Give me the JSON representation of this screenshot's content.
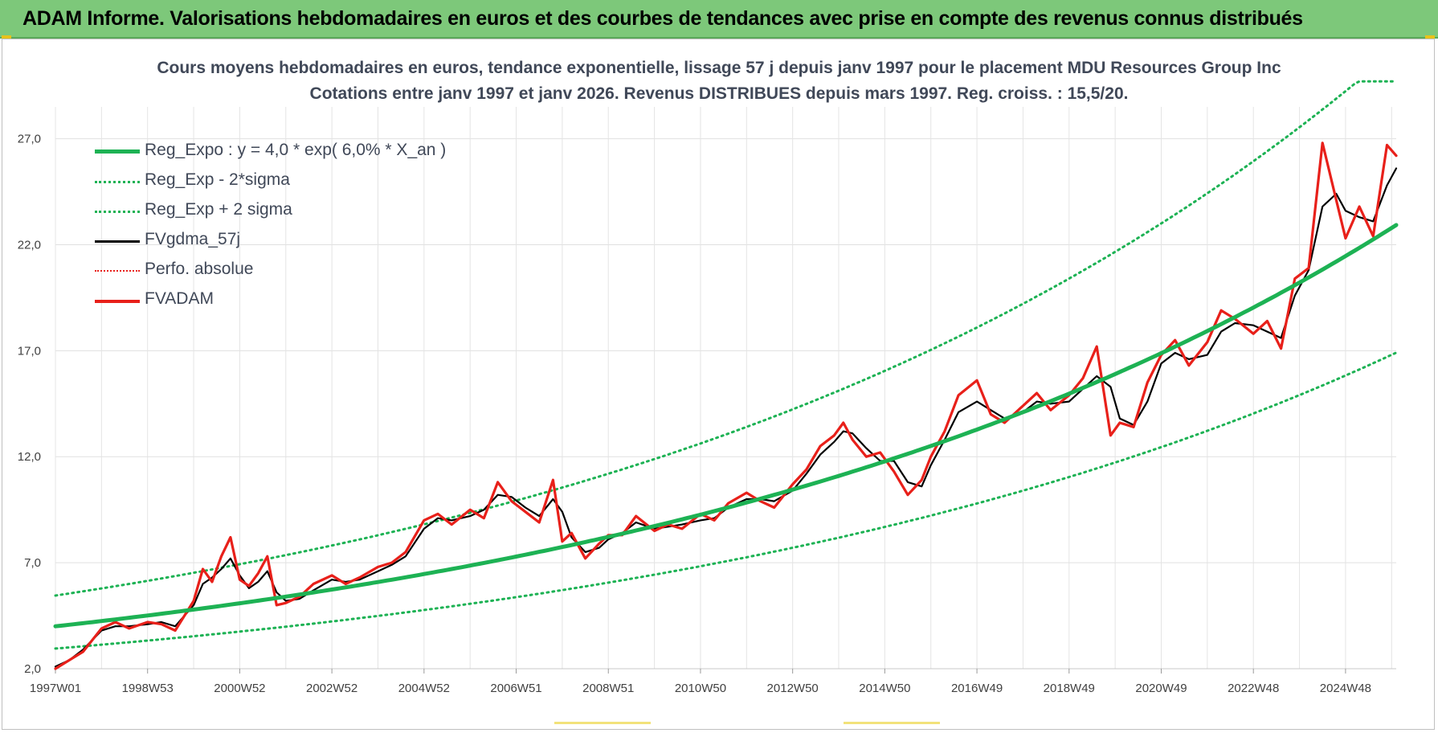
{
  "header": {
    "title": "ADAM Informe. Valorisations hebdomadaires en euros et des courbes de tendances avec prise en compte des revenus connus distribués"
  },
  "chart_data": {
    "type": "line",
    "title": "Cours moyens hebdomadaires en euros, tendance exponentielle, lissage 57 j depuis janv 1997  pour le placement MDU Resources Group Inc",
    "subtitle": "Cotations entre janv 1997 et janv 2026. Revenus DISTRIBUES depuis mars 1997. Reg. croiss. : 15,5/20.",
    "xlabel": "",
    "ylabel": "",
    "x_range": [
      1997.0,
      2026.1
    ],
    "ylim": [
      2.0,
      28.5
    ],
    "yticks": [
      2.0,
      7.0,
      12.0,
      17.0,
      22.0,
      27.0
    ],
    "ytick_labels": [
      "2,0",
      "7,0",
      "12,0",
      "17,0",
      "22,0",
      "27,0"
    ],
    "xticks": [
      1997.0,
      1999.0,
      2001.0,
      2003.0,
      2005.0,
      2007.0,
      2009.0,
      2011.0,
      2013.0,
      2015.0,
      2017.0,
      2019.0,
      2021.0,
      2023.0,
      2025.0
    ],
    "xtick_labels": [
      "1997W01",
      "1998W53",
      "2000W52",
      "2002W52",
      "2004W52",
      "2006W51",
      "2008W51",
      "2010W50",
      "2012W50",
      "2014W50",
      "2016W49",
      "2018W49",
      "2020W49",
      "2022W48",
      "2024W48"
    ],
    "grid": true,
    "legend_position": "top-left",
    "series": [
      {
        "name": "Reg_Expo : y = 4,0 * exp( 6,0% *  X_an )",
        "color": "#1db254",
        "style": "solid-thick",
        "formula": {
          "a": 4.0,
          "b": 0.06,
          "x0": 1997.0
        }
      },
      {
        "name": "Reg_Exp - 2*sigma",
        "color": "#1db254",
        "style": "dotted",
        "formula": {
          "a": 2.95,
          "b": 0.06,
          "x0": 1997.0
        }
      },
      {
        "name": "Reg_Exp + 2 sigma",
        "color": "#1db254",
        "style": "dotted",
        "formula": {
          "a": 5.45,
          "b": 0.06,
          "x0": 1997.0,
          "cap": 29.7
        }
      },
      {
        "name": "FVgdma_57j",
        "color": "#000000",
        "style": "solid",
        "x": [
          1997.0,
          1997.3,
          1997.6,
          1998.0,
          1998.3,
          1998.6,
          1999.0,
          1999.3,
          1999.6,
          2000.0,
          2000.2,
          2000.4,
          2000.6,
          2000.8,
          2001.0,
          2001.2,
          2001.4,
          2001.6,
          2001.8,
          2002.0,
          2002.3,
          2002.6,
          2003.0,
          2003.3,
          2003.6,
          2004.0,
          2004.3,
          2004.6,
          2005.0,
          2005.3,
          2005.6,
          2006.0,
          2006.3,
          2006.6,
          2006.9,
          2007.2,
          2007.5,
          2007.8,
          2008.0,
          2008.2,
          2008.5,
          2008.8,
          2009.0,
          2009.3,
          2009.6,
          2010.0,
          2010.3,
          2010.6,
          2011.0,
          2011.3,
          2011.6,
          2012.0,
          2012.3,
          2012.6,
          2013.0,
          2013.3,
          2013.6,
          2013.9,
          2014.1,
          2014.3,
          2014.6,
          2014.9,
          2015.2,
          2015.5,
          2015.8,
          2016.0,
          2016.3,
          2016.6,
          2017.0,
          2017.3,
          2017.6,
          2018.0,
          2018.3,
          2018.6,
          2019.0,
          2019.3,
          2019.6,
          2019.9,
          2020.1,
          2020.4,
          2020.7,
          2021.0,
          2021.3,
          2021.6,
          2022.0,
          2022.3,
          2022.6,
          2023.0,
          2023.3,
          2023.6,
          2023.9,
          2024.2,
          2024.5,
          2024.8,
          2025.0,
          2025.3,
          2025.6,
          2025.9,
          2026.1
        ],
        "y": [
          2.1,
          2.4,
          2.9,
          3.8,
          4.0,
          4.0,
          4.1,
          4.2,
          4.0,
          5.0,
          6.0,
          6.3,
          6.7,
          7.2,
          6.4,
          5.8,
          6.1,
          6.6,
          5.6,
          5.2,
          5.3,
          5.7,
          6.2,
          6.1,
          6.2,
          6.6,
          6.9,
          7.3,
          8.6,
          9.1,
          9.0,
          9.2,
          9.5,
          10.2,
          10.1,
          9.6,
          9.2,
          10.0,
          9.4,
          8.2,
          7.5,
          7.7,
          8.1,
          8.4,
          8.9,
          8.6,
          8.7,
          8.8,
          9.0,
          9.1,
          9.6,
          10.0,
          10.0,
          9.9,
          10.4,
          11.2,
          12.1,
          12.7,
          13.2,
          13.1,
          12.4,
          11.8,
          11.8,
          10.8,
          10.6,
          11.6,
          12.8,
          14.1,
          14.6,
          14.2,
          13.8,
          14.1,
          14.6,
          14.5,
          14.6,
          15.2,
          15.8,
          15.3,
          13.8,
          13.5,
          14.6,
          16.4,
          16.9,
          16.6,
          16.8,
          17.9,
          18.3,
          18.2,
          17.9,
          17.6,
          19.6,
          20.8,
          23.8,
          24.4,
          23.6,
          23.3,
          23.1,
          24.8,
          25.6
        ]
      },
      {
        "name": "Perfo. absolue",
        "color": "#e8201a",
        "style": "dotted"
      },
      {
        "name": "FVADAM",
        "color": "#e8201a",
        "style": "solid-thick",
        "x": [
          1997.0,
          1997.3,
          1997.6,
          1998.0,
          1998.3,
          1998.6,
          1999.0,
          1999.3,
          1999.6,
          2000.0,
          2000.2,
          2000.4,
          2000.6,
          2000.8,
          2001.0,
          2001.2,
          2001.4,
          2001.6,
          2001.8,
          2002.0,
          2002.3,
          2002.6,
          2003.0,
          2003.3,
          2003.6,
          2004.0,
          2004.3,
          2004.6,
          2005.0,
          2005.3,
          2005.6,
          2006.0,
          2006.3,
          2006.6,
          2006.9,
          2007.2,
          2007.5,
          2007.8,
          2008.0,
          2008.2,
          2008.5,
          2008.8,
          2009.0,
          2009.3,
          2009.6,
          2010.0,
          2010.3,
          2010.6,
          2011.0,
          2011.3,
          2011.6,
          2012.0,
          2012.3,
          2012.6,
          2013.0,
          2013.3,
          2013.6,
          2013.9,
          2014.1,
          2014.3,
          2014.6,
          2014.9,
          2015.2,
          2015.5,
          2015.8,
          2016.0,
          2016.3,
          2016.6,
          2017.0,
          2017.3,
          2017.6,
          2018.0,
          2018.3,
          2018.6,
          2019.0,
          2019.3,
          2019.6,
          2019.9,
          2020.1,
          2020.4,
          2020.7,
          2021.0,
          2021.3,
          2021.6,
          2022.0,
          2022.3,
          2022.6,
          2023.0,
          2023.3,
          2023.6,
          2023.9,
          2024.2,
          2024.5,
          2024.8,
          2025.0,
          2025.3,
          2025.6,
          2025.9,
          2026.1
        ],
        "y": [
          2.0,
          2.4,
          2.8,
          3.9,
          4.2,
          3.9,
          4.2,
          4.1,
          3.8,
          5.2,
          6.7,
          6.1,
          7.3,
          8.2,
          6.2,
          5.9,
          6.5,
          7.3,
          5.0,
          5.1,
          5.4,
          6.0,
          6.4,
          6.0,
          6.3,
          6.8,
          7.0,
          7.5,
          9.0,
          9.3,
          8.8,
          9.5,
          9.1,
          10.8,
          9.9,
          9.4,
          8.9,
          10.9,
          8.0,
          8.4,
          7.2,
          7.9,
          8.3,
          8.3,
          9.2,
          8.5,
          8.8,
          8.6,
          9.3,
          9.0,
          9.8,
          10.3,
          9.9,
          9.6,
          10.7,
          11.4,
          12.5,
          13.0,
          13.6,
          12.8,
          12.0,
          12.2,
          11.3,
          10.2,
          10.9,
          12.0,
          13.2,
          14.9,
          15.6,
          14.0,
          13.6,
          14.4,
          15.0,
          14.2,
          14.9,
          15.7,
          17.2,
          13.0,
          13.6,
          13.4,
          15.5,
          16.8,
          17.5,
          16.3,
          17.4,
          18.9,
          18.5,
          17.8,
          18.4,
          17.1,
          20.4,
          20.9,
          26.8,
          24.1,
          22.3,
          23.8,
          22.4,
          26.7,
          26.2
        ]
      }
    ]
  }
}
